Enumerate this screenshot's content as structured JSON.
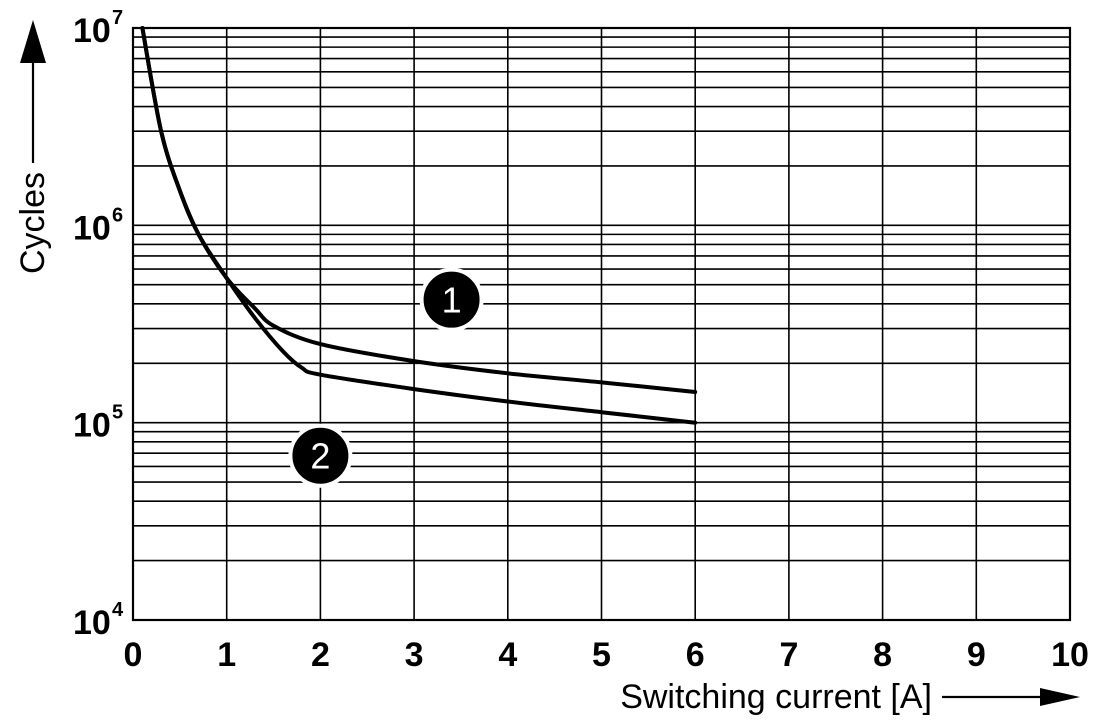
{
  "chart_data": {
    "type": "line",
    "title": "",
    "xlabel": "Switching current [A]",
    "ylabel": "Cycles",
    "xlim": [
      0,
      10
    ],
    "ylim": [
      10000,
      10000000
    ],
    "y_scale": "log",
    "grid": true,
    "x_ticks": [
      "0",
      "1",
      "2",
      "3",
      "4",
      "5",
      "6",
      "7",
      "8",
      "9",
      "10"
    ],
    "y_ticks": [
      {
        "value": 10000,
        "base": "10",
        "exp": "4"
      },
      {
        "value": 100000,
        "base": "10",
        "exp": "5"
      },
      {
        "value": 1000000,
        "base": "10",
        "exp": "6"
      },
      {
        "value": 10000000,
        "base": "10",
        "exp": "7"
      }
    ],
    "series": [
      {
        "marker": "1",
        "x": [
          0.1,
          0.3,
          0.5,
          0.7,
          1.0,
          1.3,
          1.5,
          2.0,
          3.0,
          4.0,
          5.0,
          6.0
        ],
        "y": [
          10000000,
          3000000,
          1500000,
          900000,
          540000,
          380000,
          310000,
          250000,
          205000,
          178000,
          160000,
          143000
        ]
      },
      {
        "marker": "2",
        "x": [
          0.1,
          0.3,
          0.5,
          0.7,
          1.0,
          1.3,
          1.6,
          1.8,
          2.0,
          3.0,
          4.0,
          5.0,
          6.0
        ],
        "y": [
          10000000,
          3000000,
          1500000,
          900000,
          540000,
          340000,
          230000,
          190000,
          175000,
          148000,
          128000,
          113000,
          100000
        ]
      }
    ]
  }
}
